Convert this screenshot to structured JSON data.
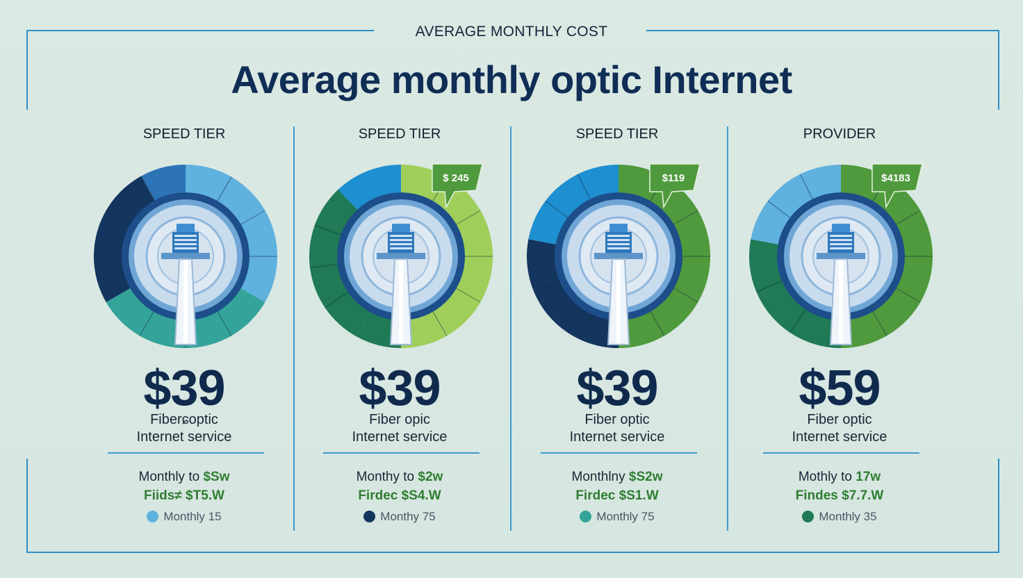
{
  "header": {
    "supertitle": "AVERAGE MONTHLY COST",
    "title": "Average monthly optic Internet"
  },
  "colors": {
    "navy": "#14355e",
    "blue": "#2d74b6",
    "light_blue": "#5fb1de",
    "teal": "#34a49a",
    "dark_green": "#1f7a55",
    "green": "#4f9a3c",
    "light_green": "#9fcf5a",
    "frame": "#2c8fc8"
  },
  "chart_data": [
    {
      "type": "pie",
      "heading": "SPEED TIER",
      "price": "$39",
      "description": [
        "Fiberɕoptic",
        "Internet service"
      ],
      "line1": {
        "text": "Monthly to ",
        "highlight": "$Sw"
      },
      "line2": "Fiids≠ $T5.W",
      "legend": {
        "label": "Monthly 15",
        "color": "#5fb1de"
      },
      "callout": "",
      "slices": [
        {
          "value": 0.5,
          "color": "#5fb1de"
        },
        {
          "value": 0.5,
          "color": "#34a49a"
        },
        {
          "value": 0.38,
          "color": "#14355e"
        },
        {
          "value": 0.12,
          "color": "#2d74b6"
        }
      ]
    },
    {
      "type": "pie",
      "heading": "SPEED TIER",
      "price": "$39",
      "description": [
        "Fiber opic",
        "Internet service"
      ],
      "line1": {
        "text": "Monthy to ",
        "highlight": "$2w"
      },
      "line2": "Firdec $S4.W",
      "legend": {
        "label": "Monthy 75",
        "color": "#14355e"
      },
      "callout": "$ 245",
      "slices": [
        {
          "value": 0.5,
          "color": "#9fcf5a"
        },
        {
          "value": 0.08,
          "color": "#1f7a55"
        },
        {
          "value": 0.3,
          "color": "#1f7a55"
        },
        {
          "value": 0.12,
          "color": "#1e8fd0"
        }
      ]
    },
    {
      "type": "pie",
      "heading": "SPEED TIER",
      "price": "$39",
      "description": [
        "Fiber optic",
        "Internet service"
      ],
      "line1": {
        "text": "Monthlny ",
        "highlight": "$S2w"
      },
      "line2": "Firdec $S1.W",
      "legend": {
        "label": "Monthly 75",
        "color": "#34a49a"
      },
      "callout": "$119",
      "slices": [
        {
          "value": 0.5,
          "color": "#4f9a3c"
        },
        {
          "value": 0.28,
          "color": "#14355e"
        },
        {
          "value": 0.22,
          "color": "#1e8fd0"
        }
      ]
    },
    {
      "type": "pie",
      "heading": "PROVIDER",
      "price": "$59",
      "description": [
        "Fiber optic",
        "Internet service"
      ],
      "line1": {
        "text": "Mothly to ",
        "highlight": "17w"
      },
      "line2": "Findes $7.7.W",
      "legend": {
        "label": "Monthly 35",
        "color": "#1f7a55"
      },
      "callout": "$4183",
      "slices": [
        {
          "value": 0.5,
          "color": "#4f9a3c"
        },
        {
          "value": 0.28,
          "color": "#1f7a55"
        },
        {
          "value": 0.22,
          "color": "#5fb1de"
        }
      ]
    }
  ]
}
